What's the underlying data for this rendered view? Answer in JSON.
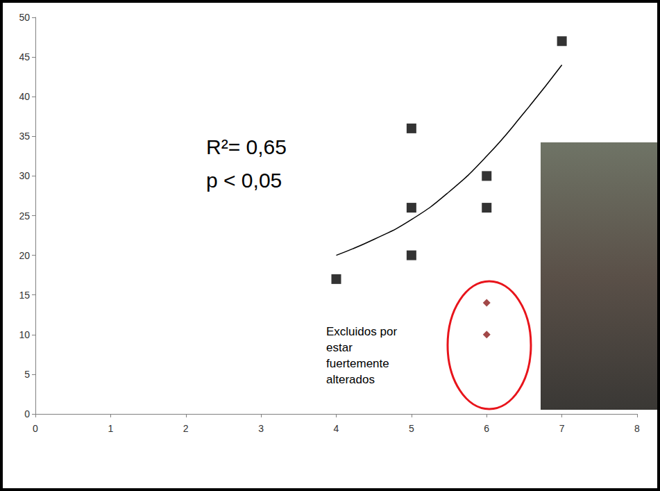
{
  "chart_data": {
    "type": "scatter",
    "annotations": [
      "R²= 0,65",
      "p < 0,05"
    ],
    "excluded_note": [
      "Excluidos por",
      "estar",
      "fuertemente",
      "alterados"
    ],
    "series": [
      {
        "type": "scatter",
        "marker": "square",
        "color": "#000000",
        "x": [
          4,
          5,
          5,
          5,
          6,
          6,
          7
        ],
        "values": [
          17,
          36,
          26,
          20,
          30,
          26,
          47
        ]
      },
      {
        "type": "scatter",
        "marker": "diamond",
        "color": "#8b1a1a",
        "x": [
          6,
          6
        ],
        "values": [
          14,
          10
        ]
      },
      {
        "type": "line",
        "line_style": "solid",
        "color": "#000000",
        "x": [
          4,
          4.5,
          5,
          5.5,
          6,
          6.5,
          7
        ],
        "values": [
          20,
          22,
          24.5,
          28,
          32.5,
          38,
          44
        ]
      }
    ],
    "xlim": [
      0,
      8
    ],
    "xticks": [
      0,
      1,
      2,
      3,
      4,
      5,
      6,
      7,
      8
    ],
    "ylim": [
      0,
      50
    ],
    "yticks": [
      0,
      5,
      10,
      15,
      20,
      25,
      30,
      35,
      40,
      45,
      50
    ],
    "grid": false
  }
}
